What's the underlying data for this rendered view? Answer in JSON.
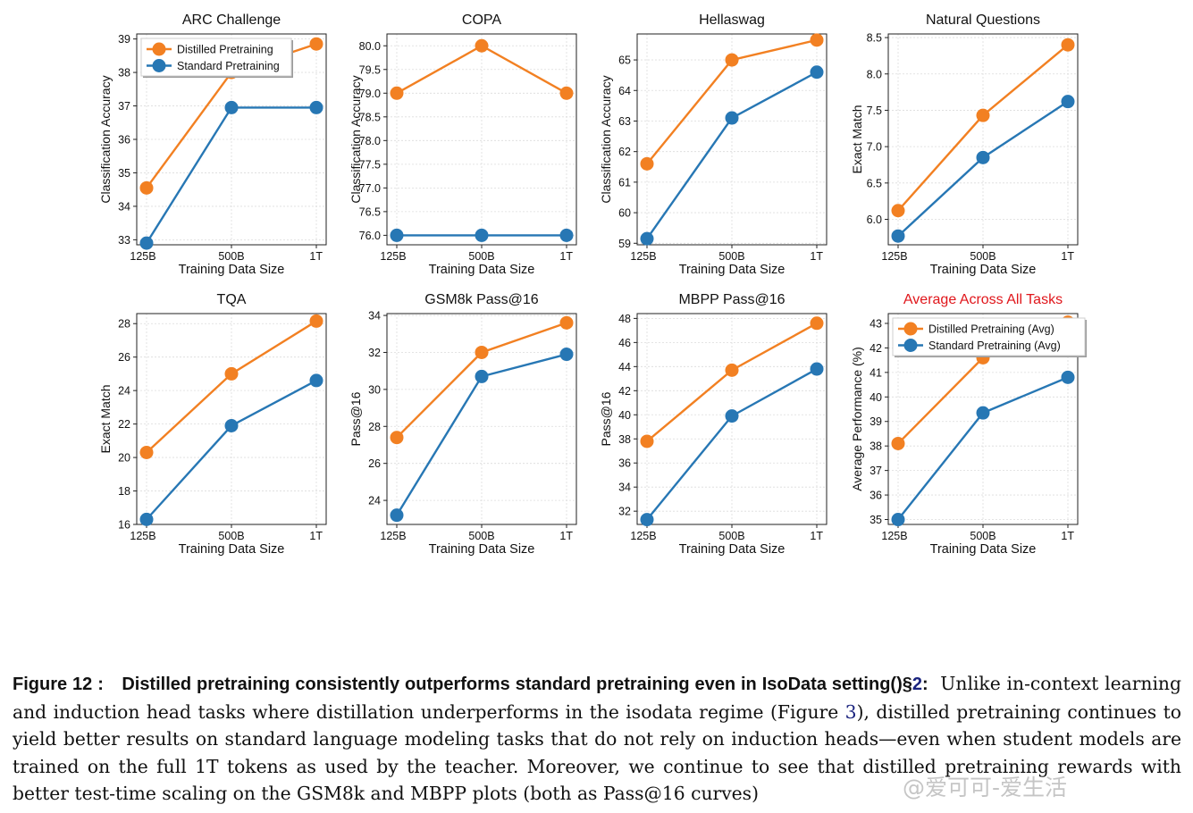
{
  "chart_data": [
    {
      "type": "line",
      "title": "ARC Challenge",
      "xlabel": "Training Data Size",
      "ylabel": "Classification Accuracy",
      "categories": [
        "125B",
        "500B",
        "1T"
      ],
      "ylim": [
        32.85,
        39.15
      ],
      "yticks": [
        "33",
        "34",
        "35",
        "36",
        "37",
        "38",
        "39"
      ],
      "grid": true,
      "legend": "top-left",
      "series": [
        {
          "name": "Distilled Pretraining",
          "values": [
            34.55,
            38.0,
            38.85
          ]
        },
        {
          "name": "Standard Pretraining",
          "values": [
            32.9,
            36.95,
            36.95
          ]
        }
      ]
    },
    {
      "type": "line",
      "title": "COPA",
      "xlabel": "Training Data Size",
      "ylabel": "Classification Accuracy",
      "categories": [
        "125B",
        "500B",
        "1T"
      ],
      "ylim": [
        75.8,
        80.25
      ],
      "yticks": [
        "76.0",
        "76.5",
        "77.0",
        "77.5",
        "78.0",
        "78.5",
        "79.0",
        "79.5",
        "80.0"
      ],
      "grid": true,
      "series": [
        {
          "name": "Distilled Pretraining",
          "values": [
            79.0,
            80.0,
            79.0
          ]
        },
        {
          "name": "Standard Pretraining",
          "values": [
            76.0,
            76.0,
            76.0
          ]
        }
      ]
    },
    {
      "type": "line",
      "title": "Hellaswag",
      "xlabel": "Training Data Size",
      "ylabel": "Classification Accuracy",
      "categories": [
        "125B",
        "500B",
        "1T"
      ],
      "ylim": [
        58.95,
        65.85
      ],
      "yticks": [
        "59",
        "60",
        "61",
        "62",
        "63",
        "64",
        "65"
      ],
      "grid": true,
      "series": [
        {
          "name": "Distilled Pretraining",
          "values": [
            61.6,
            65.0,
            65.65
          ]
        },
        {
          "name": "Standard Pretraining",
          "values": [
            59.15,
            63.1,
            64.6
          ]
        }
      ]
    },
    {
      "type": "line",
      "title": "Natural Questions",
      "xlabel": "Training Data Size",
      "ylabel": "Exact Match",
      "categories": [
        "125B",
        "500B",
        "1T"
      ],
      "ylim": [
        5.65,
        8.55
      ],
      "yticks": [
        "6.0",
        "6.5",
        "7.0",
        "7.5",
        "8.0",
        "8.5"
      ],
      "grid": true,
      "series": [
        {
          "name": "Distilled Pretraining",
          "values": [
            6.12,
            7.43,
            8.4
          ]
        },
        {
          "name": "Standard Pretraining",
          "values": [
            5.77,
            6.85,
            7.62
          ]
        }
      ]
    },
    {
      "type": "line",
      "title": "TQA",
      "xlabel": "Training Data Size",
      "ylabel": "Exact Match",
      "categories": [
        "125B",
        "500B",
        "1T"
      ],
      "ylim": [
        16.0,
        28.6
      ],
      "yticks": [
        "16",
        "18",
        "20",
        "22",
        "24",
        "26",
        "28"
      ],
      "grid": true,
      "series": [
        {
          "name": "Distilled Pretraining",
          "values": [
            20.3,
            25.0,
            28.15
          ]
        },
        {
          "name": "Standard Pretraining",
          "values": [
            16.3,
            21.9,
            24.6
          ]
        }
      ]
    },
    {
      "type": "line",
      "title": "GSM8k Pass@16",
      "xlabel": "Training Data Size",
      "ylabel": "Pass@16",
      "categories": [
        "125B",
        "500B",
        "1T"
      ],
      "ylim": [
        22.7,
        34.1
      ],
      "yticks": [
        "24",
        "26",
        "28",
        "30",
        "32",
        "34"
      ],
      "grid": true,
      "series": [
        {
          "name": "Distilled Pretraining",
          "values": [
            27.4,
            32.0,
            33.6
          ]
        },
        {
          "name": "Standard Pretraining",
          "values": [
            23.2,
            30.7,
            31.9
          ]
        }
      ]
    },
    {
      "type": "line",
      "title": "MBPP Pass@16",
      "xlabel": "Training Data Size",
      "ylabel": "Pass@16",
      "categories": [
        "125B",
        "500B",
        "1T"
      ],
      "ylim": [
        30.9,
        48.4
      ],
      "yticks": [
        "32",
        "34",
        "36",
        "38",
        "40",
        "42",
        "44",
        "46",
        "48"
      ],
      "grid": true,
      "series": [
        {
          "name": "Distilled Pretraining",
          "values": [
            37.8,
            43.7,
            47.6
          ]
        },
        {
          "name": "Standard Pretraining",
          "values": [
            31.3,
            39.9,
            43.8
          ]
        }
      ]
    },
    {
      "type": "line",
      "title": "Average Across All Tasks",
      "xlabel": "Training Data Size",
      "ylabel": "Average Performance (%)",
      "categories": [
        "125B",
        "500B",
        "1T"
      ],
      "ylim": [
        34.8,
        43.4
      ],
      "yticks": [
        "35",
        "36",
        "37",
        "38",
        "39",
        "40",
        "41",
        "42",
        "43"
      ],
      "grid": true,
      "legend": "top-left",
      "title_color": "#e0161b",
      "series": [
        {
          "name": "Distilled Pretraining (Avg)",
          "values": [
            38.1,
            41.6,
            43.05
          ]
        },
        {
          "name": "Standard Pretraining (Avg)",
          "values": [
            35.0,
            39.35,
            40.8
          ]
        }
      ]
    }
  ],
  "colors": {
    "distilled": "#f28022",
    "standard": "#2777b4",
    "axis": "#222222",
    "grid": "#dcdcdc"
  },
  "caption": {
    "label": "Figure 12 :",
    "title": "Distilled pretraining consistently outperforms standard pretraining even in IsoData setting()§",
    "section_ref": "2",
    "title_end": ":",
    "text_before_ref": "Unlike in-context learning and induction head tasks where distillation underperforms in the isodata regime (Figure",
    "figure_ref": "3",
    "text_after_ref": "), distilled pretraining continues to yield better results on standard language modeling tasks that do not rely on induction heads—even when student models are trained on the full 1T tokens as used by the teacher. Moreover, we continue to see that distilled pretraining rewards with better test-time scaling on the GSM8k and MBPP plots (both as Pass@16 curves)"
  },
  "watermark": "@爱可可-爱生活"
}
